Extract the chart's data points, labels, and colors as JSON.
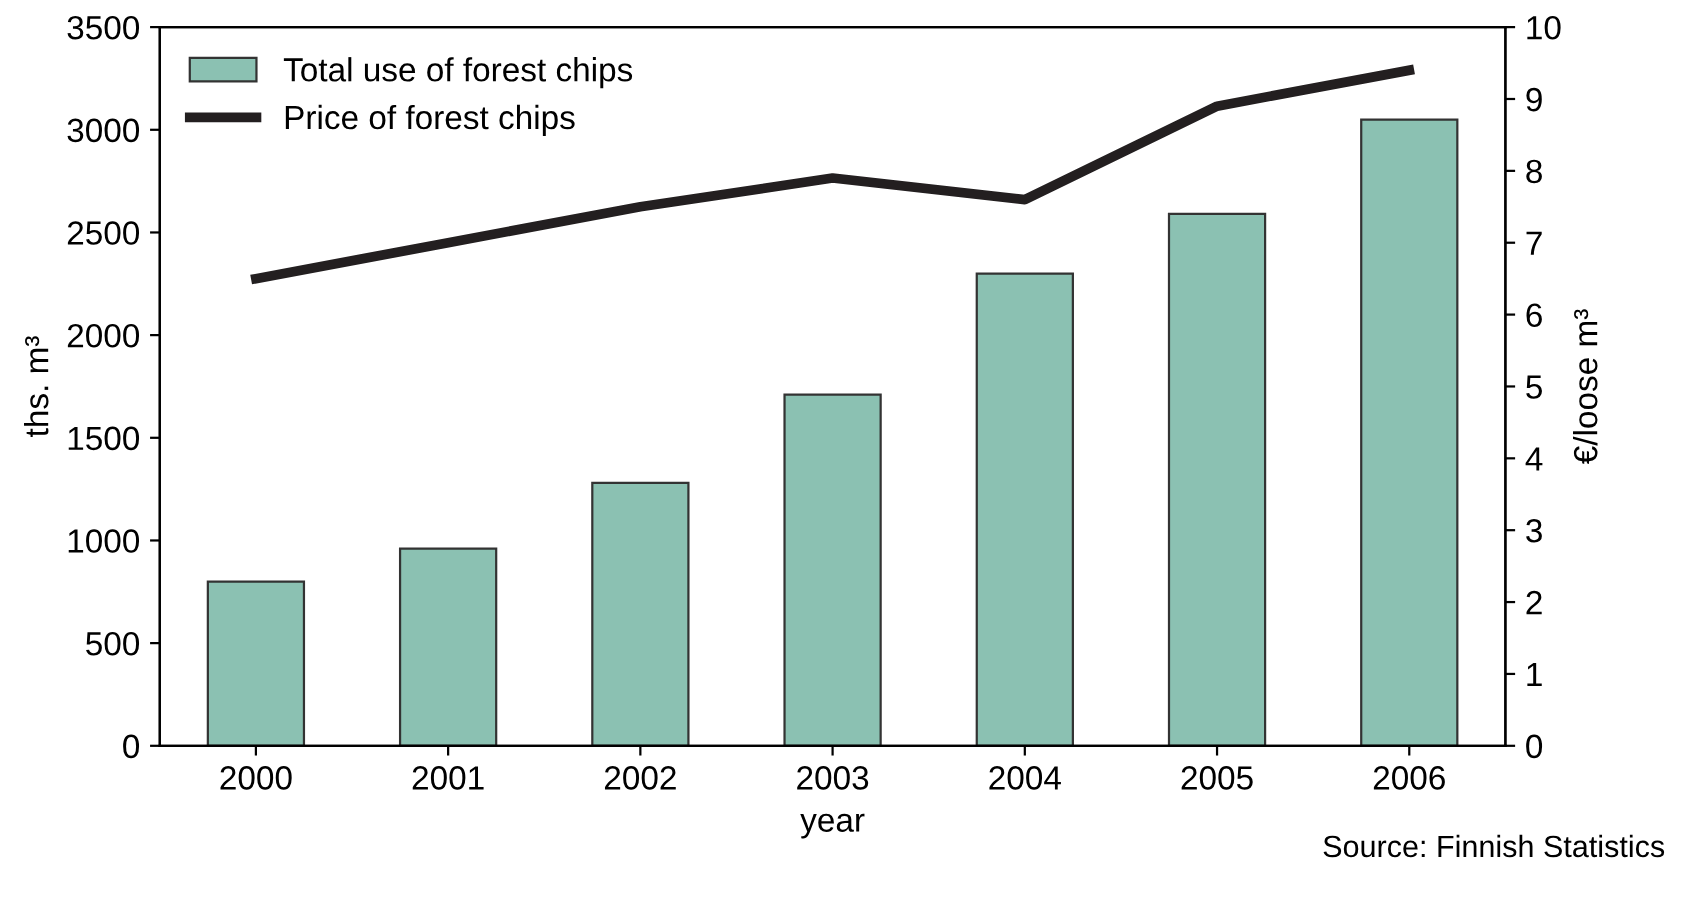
{
  "chart_data": {
    "type": "bar",
    "xlabel": "year",
    "ylabel": "ths. m³",
    "y2label": "€/loose m³",
    "categories": [
      "2000",
      "2001",
      "2002",
      "2003",
      "2004",
      "2005",
      "2006"
    ],
    "series": [
      {
        "name": "Total use of forest chips",
        "color": "#8bc1b2",
        "values": [
          800,
          960,
          1280,
          1710,
          2300,
          2590,
          3050
        ]
      },
      {
        "name": "Price of forest chips",
        "type": "line",
        "axis": "y2",
        "color": "#231f20",
        "values": [
          6.5,
          7.0,
          7.5,
          7.9,
          7.6,
          8.9,
          9.4
        ]
      }
    ],
    "ylim": [
      0,
      3500
    ],
    "yticks": [
      0,
      500,
      1000,
      1500,
      2000,
      2500,
      3000,
      3500
    ],
    "y2lim": [
      0,
      10
    ],
    "y2ticks": [
      0,
      1,
      2,
      3,
      4,
      5,
      6,
      7,
      8,
      9,
      10
    ],
    "grid": false,
    "legend": "top left",
    "marker": "none",
    "line_style": "solid",
    "annotations": [
      "Source: Finnish Statistics"
    ]
  }
}
